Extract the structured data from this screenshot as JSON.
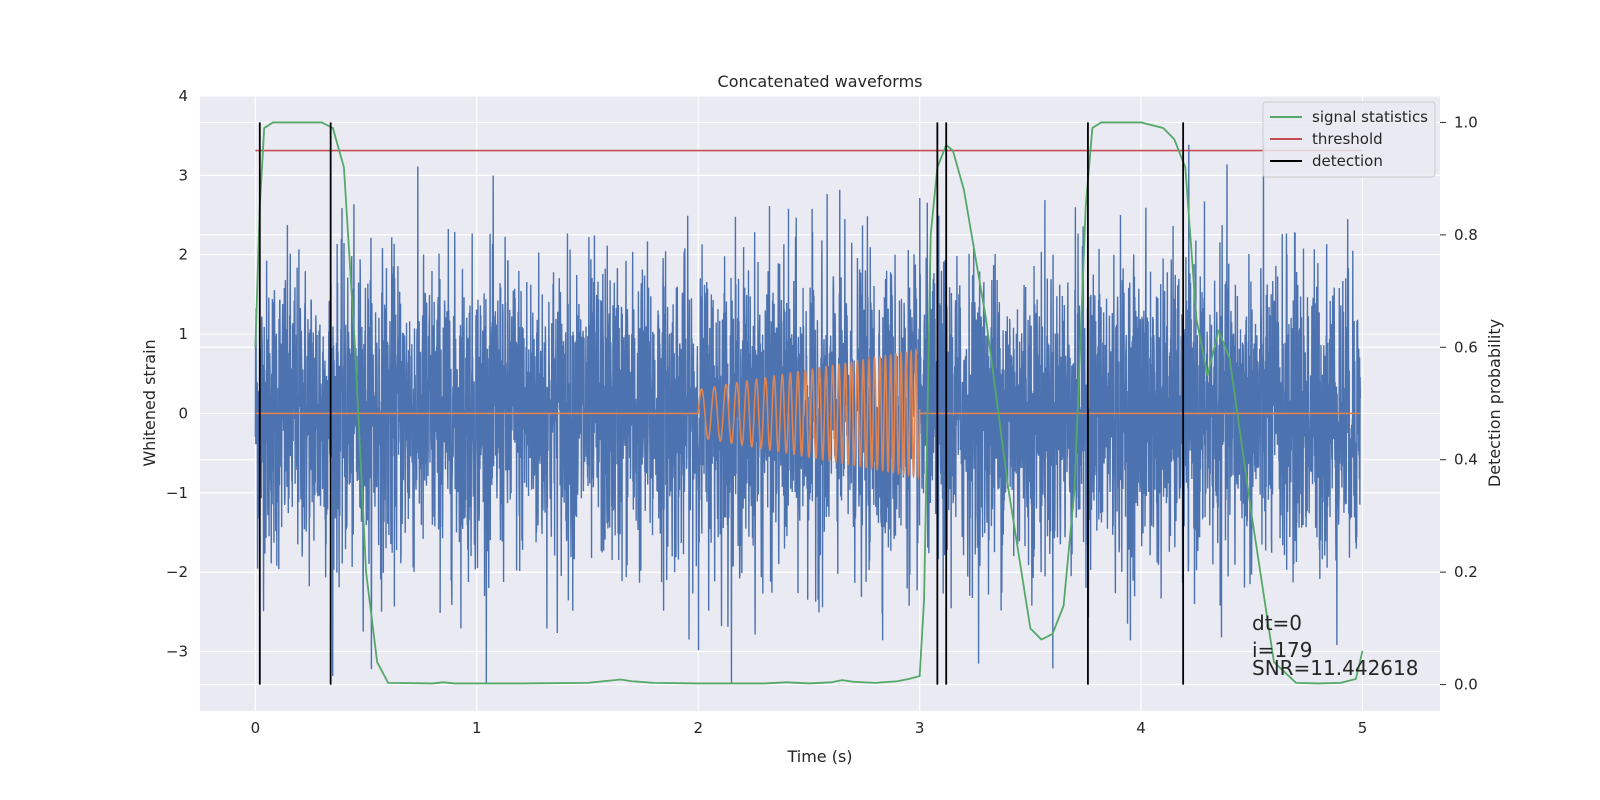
{
  "chart_data": {
    "type": "line",
    "title": "Concatenated waveforms",
    "xlabel": "Time (s)",
    "ylabel": "Whitened strain",
    "y2label": "Detection probability",
    "xlim": [
      -0.25,
      5.35
    ],
    "ylim": [
      -3.75,
      4.0
    ],
    "y2lim": [
      -0.047,
      1.047
    ],
    "xticks": [
      0,
      1,
      2,
      3,
      4,
      5
    ],
    "yticks": [
      -3,
      -2,
      -1,
      0,
      1,
      2,
      3,
      4
    ],
    "y2ticks": [
      0.0,
      0.2,
      0.4,
      0.6,
      0.8,
      1.0
    ],
    "xtick_labels": [
      "0",
      "1",
      "2",
      "3",
      "4",
      "5"
    ],
    "ytick_labels": [
      "−3",
      "−2",
      "−1",
      "0",
      "1",
      "2",
      "3",
      "4"
    ],
    "y2tick_labels": [
      "0.0",
      "0.2",
      "0.4",
      "0.6",
      "0.8",
      "1.0"
    ],
    "grid": true,
    "legend_position": "top-right",
    "colors": {
      "strain": "#4c72b0",
      "template": "#dd8452",
      "signal": "#55a868",
      "threshold": "#c44e52",
      "detection": "#000000",
      "background": "#eaeaf2"
    },
    "legend": [
      {
        "label": "signal statistics",
        "color": "#55a868"
      },
      {
        "label": "threshold",
        "color": "#c44e52"
      },
      {
        "label": "detection",
        "color": "#000000"
      }
    ],
    "strain": {
      "x_start": 0.0,
      "x_end": 4.99,
      "envelope_max": 3.4,
      "envelope_min": -3.4
    },
    "template": {
      "chirp_start": 2.0,
      "chirp_end": 3.0,
      "amplitude_start": 0.3,
      "amplitude_end": 0.8
    },
    "threshold": {
      "value": 0.95,
      "x": [
        0.0,
        5.0
      ]
    },
    "signal_statistics": {
      "x": [
        0.0,
        0.02,
        0.04,
        0.08,
        0.15,
        0.3,
        0.35,
        0.4,
        0.45,
        0.5,
        0.55,
        0.6,
        0.8,
        0.85,
        0.9,
        1.2,
        1.5,
        1.65,
        1.7,
        1.8,
        2.0,
        2.3,
        2.4,
        2.5,
        2.6,
        2.65,
        2.7,
        2.8,
        2.9,
        2.95,
        3.0,
        3.02,
        3.05,
        3.08,
        3.12,
        3.15,
        3.2,
        3.3,
        3.4,
        3.5,
        3.55,
        3.6,
        3.65,
        3.7,
        3.75,
        3.78,
        3.82,
        3.9,
        4.0,
        4.1,
        4.15,
        4.2,
        4.25,
        4.3,
        4.35,
        4.4,
        4.5,
        4.6,
        4.7,
        4.8,
        4.9,
        4.97,
        5.0
      ],
      "y": [
        0.6,
        0.85,
        0.99,
        1.0,
        1.0,
        1.0,
        0.99,
        0.92,
        0.6,
        0.2,
        0.04,
        0.003,
        0.002,
        0.004,
        0.002,
        0.002,
        0.003,
        0.009,
        0.006,
        0.003,
        0.002,
        0.002,
        0.004,
        0.002,
        0.004,
        0.008,
        0.005,
        0.003,
        0.006,
        0.01,
        0.015,
        0.15,
        0.8,
        0.92,
        0.96,
        0.95,
        0.88,
        0.65,
        0.35,
        0.1,
        0.08,
        0.09,
        0.14,
        0.35,
        0.85,
        0.99,
        1.0,
        1.0,
        1.0,
        0.99,
        0.97,
        0.92,
        0.65,
        0.55,
        0.63,
        0.58,
        0.3,
        0.04,
        0.003,
        0.002,
        0.003,
        0.01,
        0.06
      ]
    },
    "detections": [
      0.02,
      0.34,
      3.08,
      3.12,
      3.76,
      4.19
    ],
    "annotations": [
      "dt=0",
      "i=179",
      "SNR=11.442618"
    ]
  }
}
